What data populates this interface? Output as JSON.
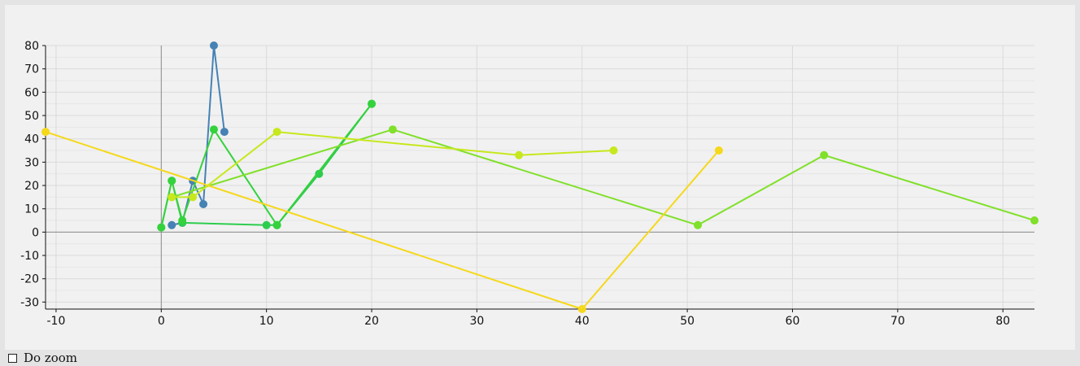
{
  "chart_data": {
    "type": "line",
    "xlim": [
      -11,
      83
    ],
    "ylim": [
      -33,
      80
    ],
    "x_ticks": [
      -10,
      0,
      10,
      20,
      30,
      40,
      50,
      60,
      70,
      80
    ],
    "y_ticks": [
      80,
      70,
      60,
      50,
      40,
      30,
      20,
      10,
      0,
      -10,
      -20,
      -30
    ],
    "grid": true,
    "series": [
      {
        "color": "#4682b4",
        "points": [
          [
            1,
            3
          ],
          [
            2,
            4
          ],
          [
            3,
            22
          ],
          [
            4,
            12
          ],
          [
            5,
            80
          ],
          [
            6,
            43
          ]
        ]
      },
      {
        "color": "#2ecc4e",
        "points": [
          [
            0,
            2
          ],
          [
            1,
            22
          ],
          [
            2,
            4
          ],
          [
            10,
            3
          ],
          [
            11,
            3
          ],
          [
            15,
            25
          ],
          [
            20,
            55
          ]
        ]
      },
      {
        "color": "#34d23c",
        "points": [
          [
            0,
            2
          ],
          [
            1,
            22
          ],
          [
            2,
            5
          ],
          [
            5,
            44
          ],
          [
            11,
            3
          ],
          [
            20,
            55
          ]
        ]
      },
      {
        "color": "#80e02a",
        "points": [
          [
            1,
            15
          ],
          [
            22,
            44
          ],
          [
            51,
            3
          ],
          [
            63,
            33
          ],
          [
            83,
            5
          ]
        ]
      },
      {
        "color": "#c6e81c",
        "points": [
          [
            1,
            15
          ],
          [
            3,
            15
          ],
          [
            11,
            43
          ],
          [
            34,
            33
          ],
          [
            43,
            35
          ]
        ]
      },
      {
        "color": "#f5d81a",
        "points": [
          [
            -11,
            43
          ],
          [
            40,
            -33
          ],
          [
            53,
            35
          ]
        ]
      }
    ]
  },
  "controls": {
    "zoom_label": "Do zoom"
  }
}
